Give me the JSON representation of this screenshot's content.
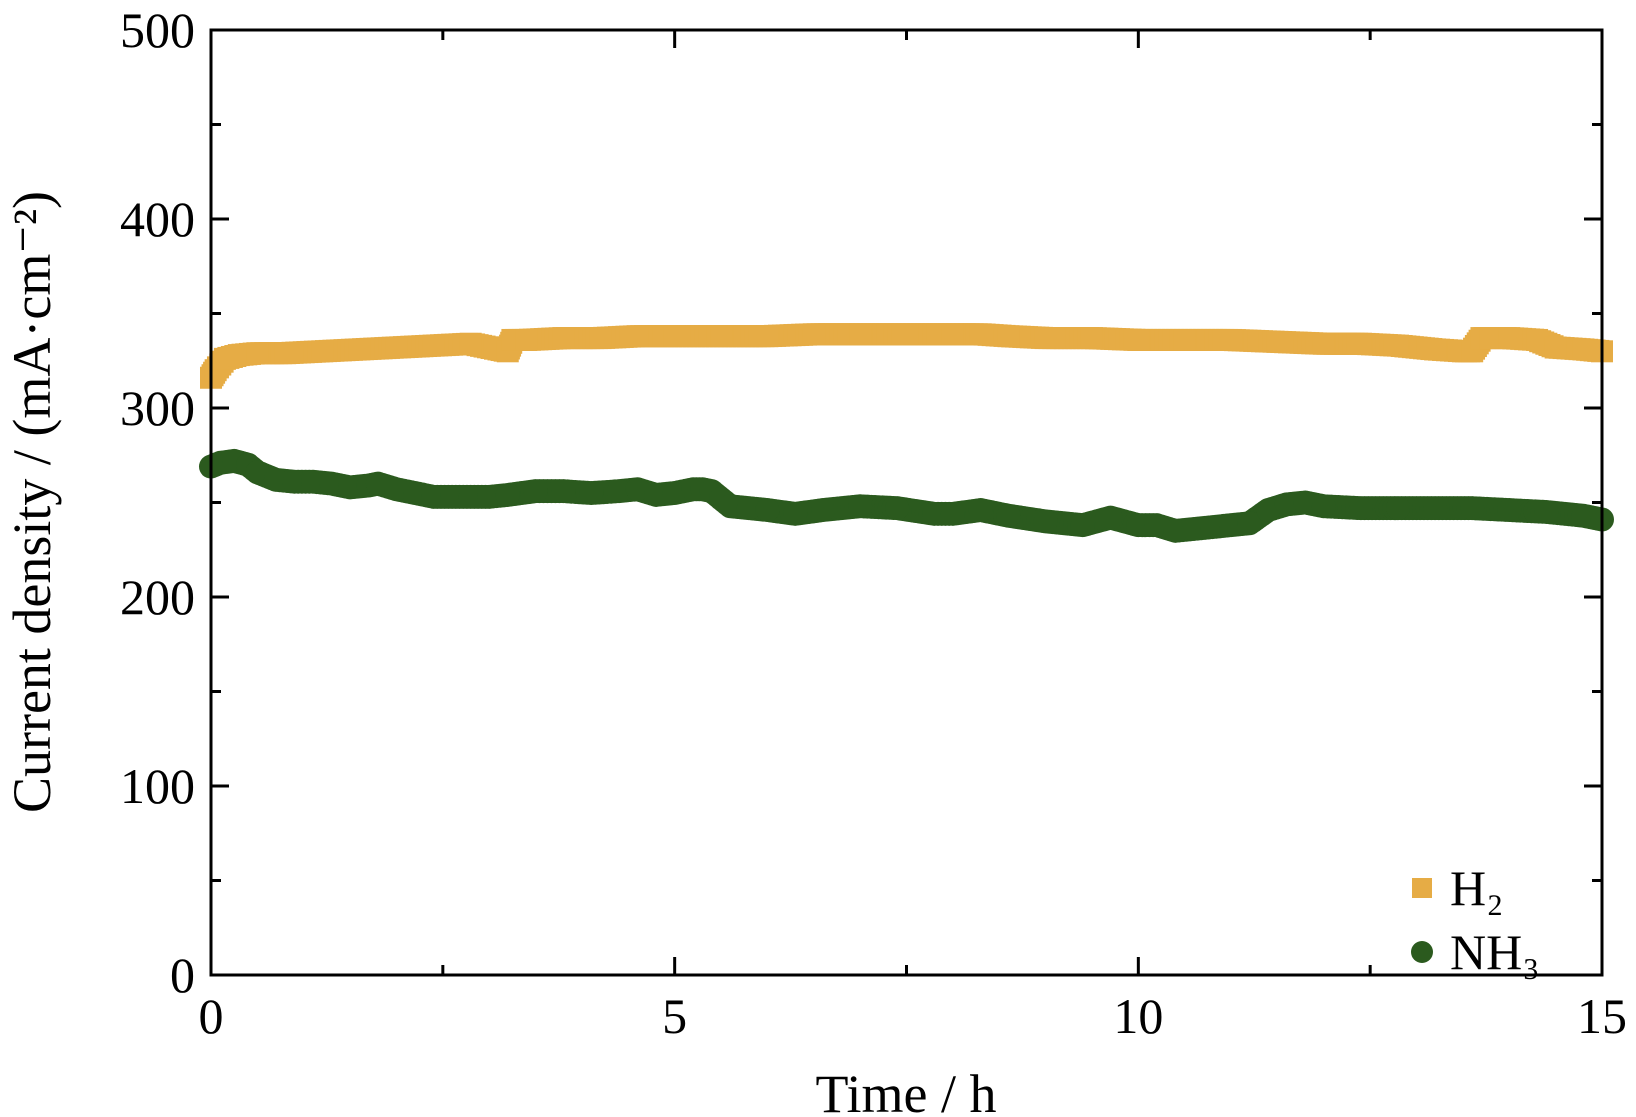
{
  "chart_data": {
    "type": "scatter",
    "title": "",
    "xlabel": "Time / h",
    "ylabel": "Current density / (mA·cm⁻²)",
    "xlim": [
      0,
      15
    ],
    "ylim": [
      0,
      500
    ],
    "x_ticks": [
      0,
      5,
      10,
      15
    ],
    "x_tick_labels": [
      "0",
      "5",
      "10",
      "15"
    ],
    "y_ticks": [
      0,
      100,
      200,
      300,
      400,
      500
    ],
    "y_tick_labels": [
      "0",
      "100",
      "200",
      "300",
      "400",
      "500"
    ],
    "grid": false,
    "legend_position": "bottom-right",
    "series": [
      {
        "name": "H₂",
        "marker": "square",
        "color": "#E6AC45",
        "x": [
          0.0,
          0.05,
          0.15,
          0.3,
          0.5,
          0.8,
          1.2,
          1.6,
          2.0,
          2.4,
          2.8,
          3.1,
          3.2,
          3.25,
          3.4,
          3.8,
          4.2,
          4.6,
          5.0,
          5.5,
          6.0,
          6.5,
          7.0,
          7.5,
          8.0,
          8.3,
          8.6,
          9.0,
          9.5,
          10.0,
          10.5,
          11.0,
          11.5,
          12.0,
          12.4,
          12.8,
          13.2,
          13.5,
          13.6,
          13.7,
          13.8,
          14.0,
          14.3,
          14.5,
          14.8,
          15.0
        ],
        "y": [
          316,
          320,
          326,
          328,
          329,
          329,
          330,
          331,
          332,
          333,
          334,
          331,
          330,
          336,
          336,
          337,
          337,
          338,
          338,
          338,
          338,
          339,
          339,
          339,
          339,
          339,
          338,
          337,
          337,
          336,
          336,
          336,
          335,
          334,
          334,
          333,
          331,
          330,
          330,
          337,
          337,
          337,
          336,
          332,
          331,
          330
        ]
      },
      {
        "name": "NH₃",
        "marker": "circle",
        "color": "#2B5A1E",
        "x": [
          0.0,
          0.1,
          0.25,
          0.4,
          0.5,
          0.7,
          0.9,
          1.1,
          1.3,
          1.5,
          1.7,
          1.8,
          2.0,
          2.2,
          2.4,
          2.6,
          2.8,
          3.0,
          3.2,
          3.5,
          3.8,
          4.1,
          4.4,
          4.6,
          4.8,
          5.0,
          5.2,
          5.3,
          5.4,
          5.5,
          5.6,
          5.8,
          6.0,
          6.3,
          6.6,
          7.0,
          7.4,
          7.8,
          8.0,
          8.3,
          8.6,
          9.0,
          9.4,
          9.7,
          10.0,
          10.2,
          10.4,
          10.6,
          10.8,
          11.0,
          11.2,
          11.4,
          11.6,
          11.8,
          12.0,
          12.4,
          12.8,
          13.2,
          13.6,
          14.0,
          14.4,
          14.8,
          15.0
        ],
        "y": [
          269,
          271,
          272,
          270,
          266,
          262,
          261,
          261,
          260,
          258,
          259,
          260,
          257,
          255,
          253,
          253,
          253,
          253,
          254,
          256,
          256,
          255,
          256,
          257,
          254,
          255,
          257,
          257,
          256,
          252,
          248,
          247,
          246,
          244,
          246,
          248,
          247,
          244,
          244,
          246,
          243,
          240,
          238,
          242,
          238,
          238,
          235,
          236,
          237,
          238,
          239,
          246,
          249,
          250,
          248,
          247,
          247,
          247,
          247,
          246,
          245,
          243,
          241
        ]
      }
    ]
  }
}
